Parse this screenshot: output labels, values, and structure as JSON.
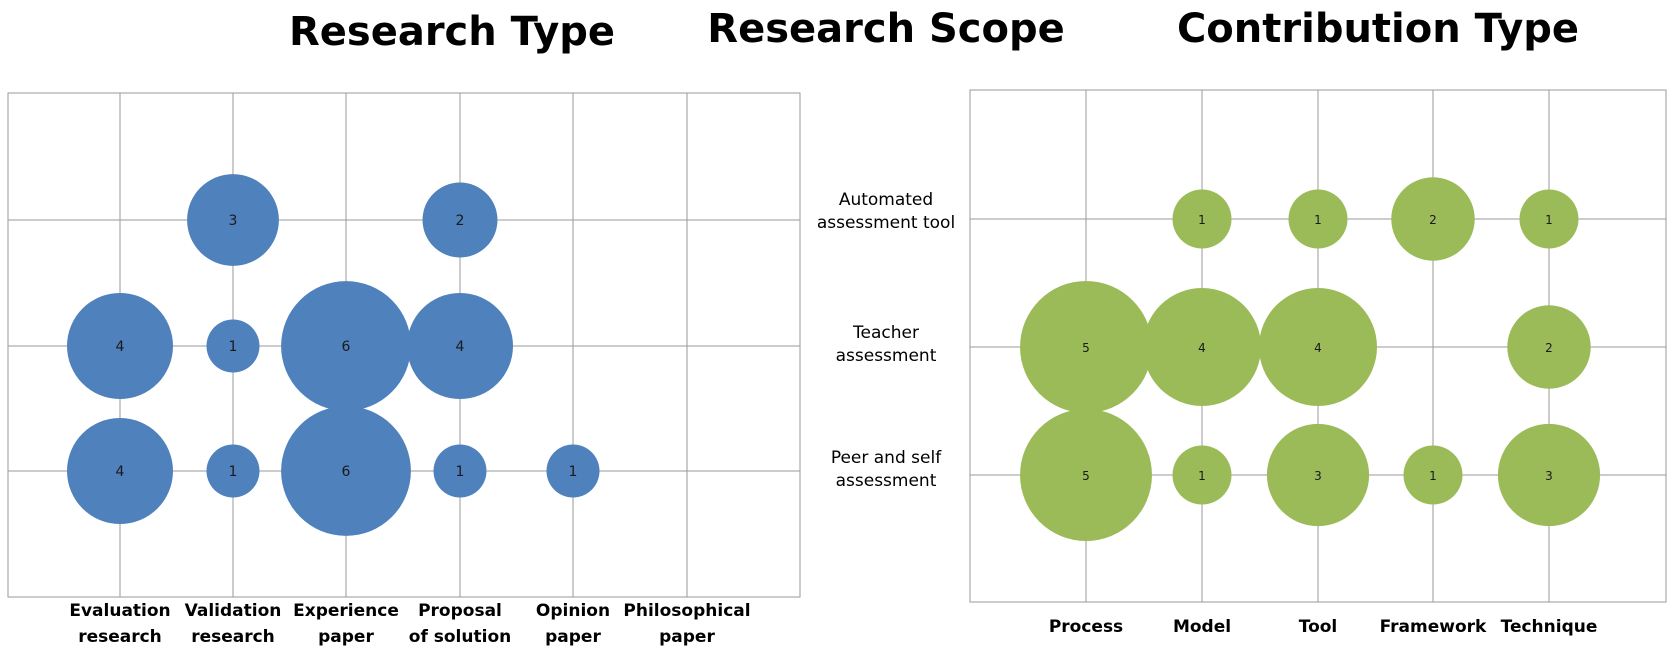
{
  "titles": {
    "research_type": "Research Type",
    "research_scope": "Research Scope",
    "contribution_type": "Contribution Type"
  },
  "colors": {
    "research_type_bubble": "#4f81bd",
    "contribution_type_bubble": "#9bbb59",
    "grid": "#9a9a9a"
  },
  "chart_data": [
    {
      "type": "scatter",
      "subtype": "bubble",
      "title": "Research Type",
      "categories": [
        "Evaluation research",
        "Validation research",
        "Experience paper",
        "Proposal of solution",
        "Opinion paper",
        "Philosophical paper"
      ],
      "category_lines": [
        [
          "Evaluation",
          "research"
        ],
        [
          "Validation",
          "research"
        ],
        [
          "Experience",
          "paper"
        ],
        [
          "Proposal",
          "of solution"
        ],
        [
          "Opinion",
          "paper"
        ],
        [
          "Philosophical",
          "paper"
        ]
      ],
      "rows": [
        "Automated assessment tool",
        "Teacher assessment",
        "Peer and self assessment"
      ],
      "points": [
        {
          "category": "Validation research",
          "row": "Automated assessment tool",
          "value": 3
        },
        {
          "category": "Proposal of solution",
          "row": "Automated assessment tool",
          "value": 2
        },
        {
          "category": "Evaluation research",
          "row": "Teacher assessment",
          "value": 4
        },
        {
          "category": "Validation research",
          "row": "Teacher assessment",
          "value": 1
        },
        {
          "category": "Experience paper",
          "row": "Teacher assessment",
          "value": 6
        },
        {
          "category": "Proposal of solution",
          "row": "Teacher assessment",
          "value": 4
        },
        {
          "category": "Evaluation research",
          "row": "Peer and self assessment",
          "value": 4
        },
        {
          "category": "Validation research",
          "row": "Peer and self assessment",
          "value": 1
        },
        {
          "category": "Experience paper",
          "row": "Peer and self assessment",
          "value": 6
        },
        {
          "category": "Proposal of solution",
          "row": "Peer and self assessment",
          "value": 1
        },
        {
          "category": "Opinion paper",
          "row": "Peer and self assessment",
          "value": 1
        }
      ],
      "grid": true
    },
    {
      "type": "scatter",
      "subtype": "bubble",
      "title": "Contribution Type",
      "categories": [
        "Process",
        "Model",
        "Tool",
        "Framework",
        "Technique"
      ],
      "category_lines": [
        [
          "Process"
        ],
        [
          "Model"
        ],
        [
          "Tool"
        ],
        [
          "Framework"
        ],
        [
          "Technique"
        ]
      ],
      "rows": [
        "Automated assessment tool",
        "Teacher assessment",
        "Peer and self assessment"
      ],
      "points": [
        {
          "category": "Model",
          "row": "Automated assessment tool",
          "value": 1
        },
        {
          "category": "Tool",
          "row": "Automated assessment tool",
          "value": 1
        },
        {
          "category": "Framework",
          "row": "Automated assessment tool",
          "value": 2
        },
        {
          "category": "Technique",
          "row": "Automated assessment tool",
          "value": 1
        },
        {
          "category": "Process",
          "row": "Teacher assessment",
          "value": 5
        },
        {
          "category": "Model",
          "row": "Teacher assessment",
          "value": 4
        },
        {
          "category": "Tool",
          "row": "Teacher assessment",
          "value": 4
        },
        {
          "category": "Technique",
          "row": "Teacher assessment",
          "value": 2
        },
        {
          "category": "Process",
          "row": "Peer and self assessment",
          "value": 5
        },
        {
          "category": "Model",
          "row": "Peer and self assessment",
          "value": 1
        },
        {
          "category": "Tool",
          "row": "Peer and self assessment",
          "value": 3
        },
        {
          "category": "Framework",
          "row": "Peer and self assessment",
          "value": 1
        },
        {
          "category": "Technique",
          "row": "Peer and self assessment",
          "value": 3
        }
      ],
      "grid": true
    }
  ],
  "scope_labels": [
    {
      "lines": [
        "Automated",
        "assessment tool"
      ]
    },
    {
      "lines": [
        "Teacher",
        "assessment"
      ]
    },
    {
      "lines": [
        "Peer and self",
        "assessment"
      ]
    }
  ]
}
